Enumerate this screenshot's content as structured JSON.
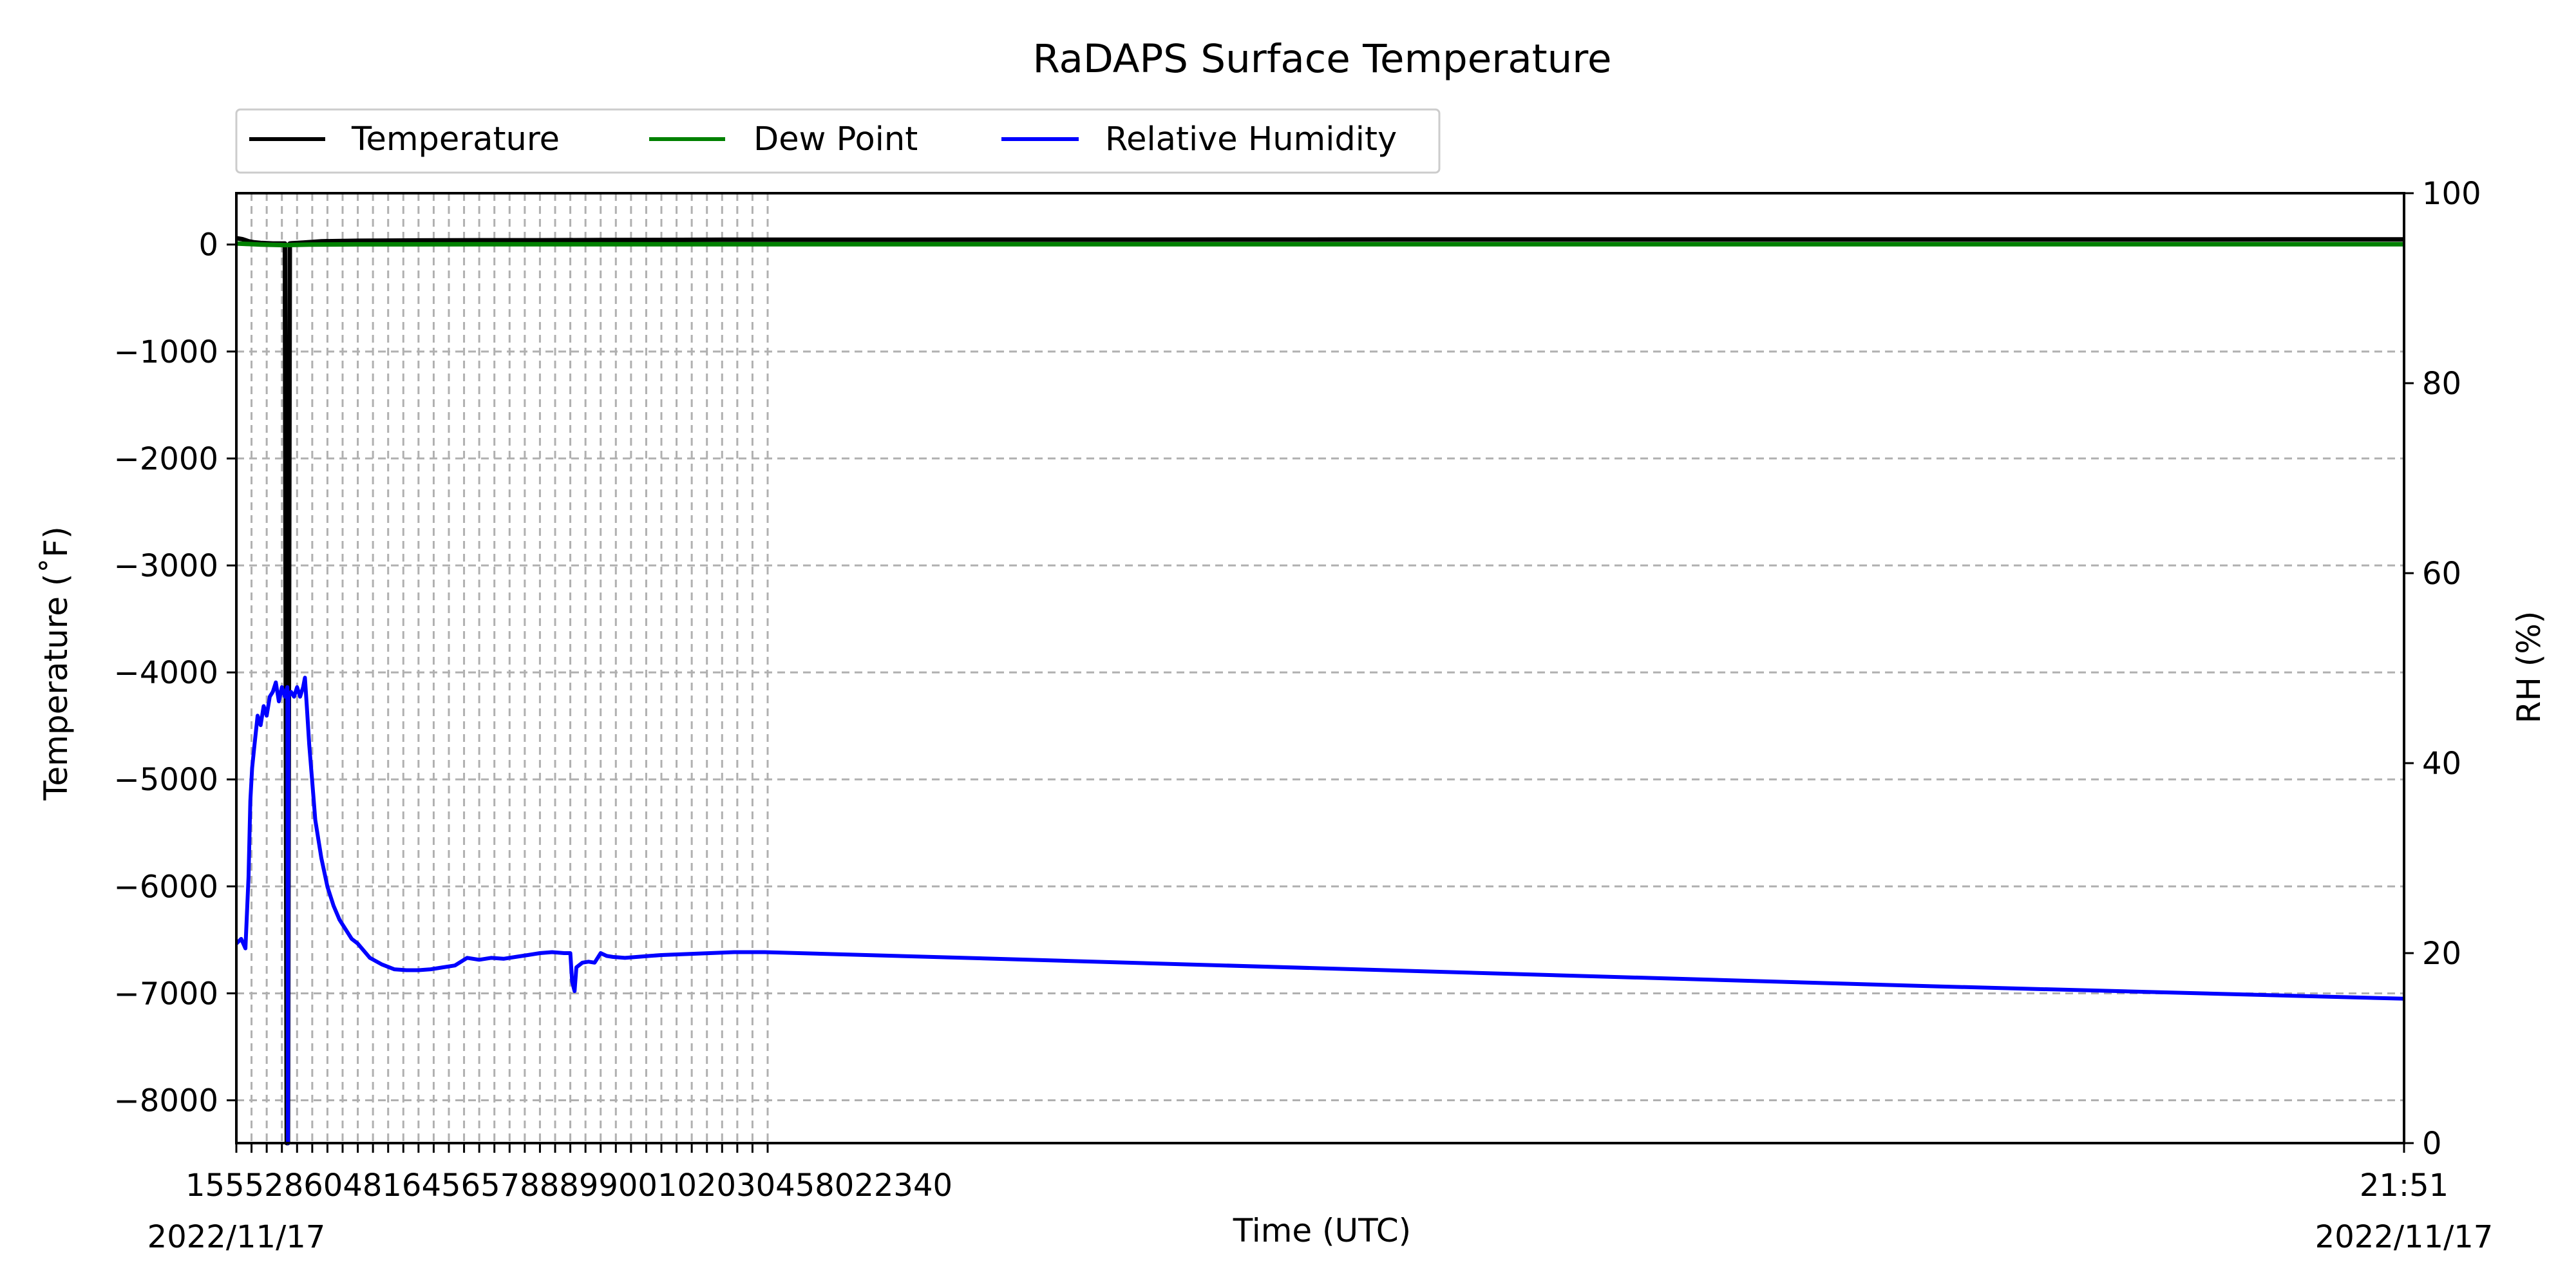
{
  "chart_data": {
    "type": "line",
    "title": "RaDAPS Surface Temperature",
    "xlabel": "Time (UTC)",
    "ylabel_left": "Temperature ($^\\circ$F)",
    "ylabel_left_display": "Temperature (˚F)",
    "ylabel_right": "RH (%)",
    "date_left": "2022/11/17",
    "date_right": "2022/11/17",
    "x_end_label": "21:51",
    "x_dense_label_text": "155528604816456578889900102030458022340",
    "ylim_left": [
      -8400,
      480
    ],
    "ylim_right": [
      0,
      100
    ],
    "yticks_left": [
      0,
      -1000,
      -2000,
      -3000,
      -4000,
      -5000,
      -6000,
      -7000,
      -8000
    ],
    "yticks_left_labels": [
      "0",
      "−1000",
      "−2000",
      "−3000",
      "−4000",
      "−5000",
      "−6000",
      "−7000",
      "−8000"
    ],
    "yticks_right": [
      0,
      20,
      40,
      60,
      80,
      100
    ],
    "yticks_right_labels": [
      "0",
      "20",
      "40",
      "60",
      "80",
      "100"
    ],
    "grid": true,
    "legend_placement": "top-left, above plot",
    "colors": {
      "temperature": "#000000",
      "dew_point": "#008000",
      "relative_humidity": "#0000ff",
      "grid": "#b0b0b0"
    },
    "x_range_minutes": [
      0,
      357
    ],
    "dense_vertical_grid_minutes": [
      0,
      2.5,
      5,
      7.5,
      10,
      12.5,
      15,
      17.5,
      20,
      22.5,
      25,
      27.5,
      30,
      32.5,
      35,
      37.5,
      40,
      42.5,
      45,
      47.5,
      50,
      52.5,
      55,
      57.5,
      60,
      62.5,
      65,
      67.5,
      70,
      72.5,
      75,
      77.5,
      80,
      82.5,
      85,
      87.5
    ],
    "series": [
      {
        "name": "Temperature",
        "axis": "left",
        "x_minutes": [
          0,
          1,
          2,
          3,
          4,
          6,
          8,
          8.3,
          8.5,
          8.8,
          9.2,
          11,
          14,
          20,
          30,
          40,
          50,
          60,
          70,
          80,
          87,
          200,
          357
        ],
        "values": [
          60,
          50,
          30,
          20,
          15,
          10,
          10,
          -8400,
          -8400,
          10,
          12,
          18,
          30,
          35,
          38,
          40,
          40,
          42,
          43,
          45,
          45,
          47,
          48
        ]
      },
      {
        "name": "Dew Point",
        "axis": "left",
        "x_minutes": [
          0,
          2,
          4,
          8,
          12,
          20,
          40,
          60,
          87,
          200,
          357
        ],
        "values": [
          10,
          5,
          0,
          -5,
          0,
          2,
          3,
          3,
          3,
          3,
          3
        ]
      },
      {
        "name": "Relative Humidity",
        "axis": "right",
        "x_minutes": [
          0,
          0.8,
          1.5,
          2,
          2.3,
          2.6,
          3,
          3.5,
          4,
          4.5,
          5,
          5.5,
          6,
          6.5,
          7,
          7.5,
          8,
          8.4,
          8.5,
          8.6,
          9,
          9.5,
          10,
          10.5,
          11,
          11.3,
          11.6,
          12,
          12.5,
          13,
          14,
          15,
          16,
          17,
          18,
          19,
          20,
          22,
          24,
          26,
          28,
          30,
          32,
          34,
          36,
          38,
          40,
          42,
          44,
          46,
          48,
          50,
          52,
          54,
          55,
          55.3,
          55.7,
          56,
          57,
          58,
          59,
          60,
          61,
          62,
          64,
          66,
          68,
          70,
          74,
          78,
          82,
          87,
          120,
          200,
          280,
          357
        ],
        "values": [
          21,
          21.5,
          20.5,
          28,
          36,
          39.5,
          42,
          45,
          44,
          46,
          45,
          47,
          47.5,
          48.5,
          46.5,
          48,
          47,
          48,
          0,
          47,
          47.5,
          47,
          48,
          47,
          48,
          49,
          46,
          42,
          38,
          34,
          30,
          27,
          25,
          23.5,
          22.5,
          21.5,
          21,
          19.5,
          18.8,
          18.3,
          18.2,
          18.2,
          18.3,
          18.5,
          18.7,
          19.5,
          19.3,
          19.5,
          19.4,
          19.6,
          19.8,
          20,
          20.1,
          20,
          20,
          17,
          16,
          18.5,
          19,
          19.1,
          19,
          20,
          19.7,
          19.6,
          19.5,
          19.6,
          19.7,
          19.8,
          19.9,
          20,
          20.1,
          20.1,
          19.5,
          18,
          16.5,
          15.2
        ]
      }
    ]
  }
}
